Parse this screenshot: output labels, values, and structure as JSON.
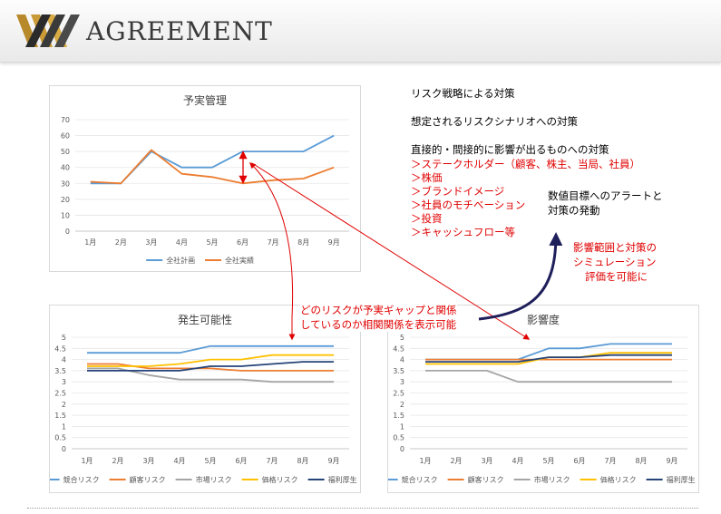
{
  "header": {
    "brand": "AGREEMENT"
  },
  "right_text": {
    "line1": "リスク戦略による対策",
    "line2": "想定されるリスクシナリオへの対策",
    "line3": "直接的・間接的に影響が出るものへの対策",
    "items": [
      "＞ステークホルダー（顧客、株主、当局、社員）",
      "＞株価",
      "＞ブランドイメージ",
      "＞社員のモチベーション",
      "＞投資",
      "＞キャッシュフロー等"
    ],
    "numeric": [
      "数値目標へのアラートと",
      "対策の発動"
    ],
    "sim": [
      "影響範囲と対策の",
      "シミュレーション",
      "評価を可能に"
    ],
    "relation": [
      "どのリスクが予実ギャップと関係",
      "しているのか相関関係を表示可能"
    ]
  },
  "colors": {
    "blue": "#5b9bd5",
    "orange": "#ed7d31",
    "gray": "#a5a5a5",
    "yellow": "#ffc000",
    "navy": "#264478",
    "red": "#e00000",
    "arrow_navy": "#1f1f5c"
  },
  "chart_data": [
    {
      "type": "line",
      "title": "予実管理",
      "categories": [
        "1月",
        "2月",
        "3月",
        "4月",
        "5月",
        "6月",
        "7月",
        "8月",
        "9月"
      ],
      "ylim": [
        0,
        70
      ],
      "yticks": [
        0,
        10,
        20,
        30,
        40,
        50,
        60,
        70
      ],
      "legend": "bottom",
      "series": [
        {
          "name": "全社計画",
          "color": "#5b9bd5",
          "values": [
            30,
            30,
            50,
            40,
            40,
            50,
            50,
            50,
            60
          ]
        },
        {
          "name": "全社実績",
          "color": "#ed7d31",
          "values": [
            31,
            30,
            51,
            36,
            34,
            30,
            32,
            33,
            40
          ]
        }
      ]
    },
    {
      "type": "line",
      "title": "発生可能性",
      "categories": [
        "1月",
        "2月",
        "3月",
        "4月",
        "5月",
        "6月",
        "7月",
        "8月",
        "9月"
      ],
      "ylim": [
        0,
        5
      ],
      "yticks": [
        0,
        0.5,
        1,
        1.5,
        2,
        2.5,
        3,
        3.5,
        4,
        4.5,
        5
      ],
      "legend": "bottom",
      "series": [
        {
          "name": "競合リスク",
          "color": "#5b9bd5",
          "values": [
            4.3,
            4.3,
            4.3,
            4.3,
            4.6,
            4.6,
            4.6,
            4.6,
            4.6
          ]
        },
        {
          "name": "顧客リスク",
          "color": "#ed7d31",
          "values": [
            3.8,
            3.8,
            3.6,
            3.6,
            3.6,
            3.5,
            3.5,
            3.5,
            3.5
          ]
        },
        {
          "name": "市場リスク",
          "color": "#a5a5a5",
          "values": [
            3.6,
            3.6,
            3.3,
            3.1,
            3.1,
            3.1,
            3.0,
            3.0,
            3.0
          ]
        },
        {
          "name": "価格リスク",
          "color": "#ffc000",
          "values": [
            3.7,
            3.7,
            3.7,
            3.8,
            4.0,
            4.0,
            4.2,
            4.2,
            4.2
          ]
        },
        {
          "name": "福利厚生",
          "color": "#264478",
          "values": [
            3.5,
            3.5,
            3.5,
            3.5,
            3.7,
            3.7,
            3.8,
            3.9,
            3.9
          ]
        }
      ]
    },
    {
      "type": "line",
      "title": "影響度",
      "categories": [
        "1月",
        "2月",
        "3月",
        "4月",
        "5月",
        "6月",
        "7月",
        "8月",
        "9月"
      ],
      "ylim": [
        0,
        5
      ],
      "yticks": [
        0,
        0.5,
        1,
        1.5,
        2,
        2.5,
        3,
        3.5,
        4,
        4.5,
        5
      ],
      "legend": "bottom",
      "series": [
        {
          "name": "競合リスク",
          "color": "#5b9bd5",
          "values": [
            4.0,
            4.0,
            4.0,
            4.0,
            4.5,
            4.5,
            4.7,
            4.7,
            4.7
          ]
        },
        {
          "name": "顧客リスク",
          "color": "#ed7d31",
          "values": [
            4.0,
            4.0,
            4.0,
            4.0,
            4.0,
            4.0,
            4.0,
            4.0,
            4.0
          ]
        },
        {
          "name": "市場リスク",
          "color": "#a5a5a5",
          "values": [
            3.5,
            3.5,
            3.5,
            3.0,
            3.0,
            3.0,
            3.0,
            3.0,
            3.0
          ]
        },
        {
          "name": "価格リスク",
          "color": "#ffc000",
          "values": [
            3.8,
            3.8,
            3.8,
            3.8,
            4.1,
            4.1,
            4.3,
            4.3,
            4.3
          ]
        },
        {
          "name": "福利厚生",
          "color": "#264478",
          "values": [
            3.9,
            3.9,
            3.9,
            3.9,
            4.1,
            4.1,
            4.2,
            4.2,
            4.2
          ]
        }
      ]
    }
  ]
}
